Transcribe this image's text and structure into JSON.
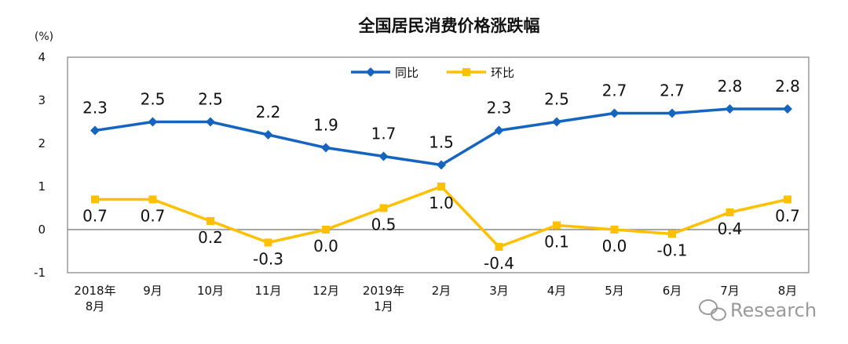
{
  "chart_data": {
    "type": "line",
    "title": "全国居民消费价格涨跌幅",
    "ylabel": "(%)",
    "ylim": [
      -1,
      4
    ],
    "yticks": [
      "4",
      "3",
      "2",
      "1",
      "0",
      "-1"
    ],
    "categories": [
      [
        "2018年",
        "8月"
      ],
      [
        "9月"
      ],
      [
        "10月"
      ],
      [
        "11月"
      ],
      [
        "12月"
      ],
      [
        "2019年",
        "1月"
      ],
      [
        "2月"
      ],
      [
        "3月"
      ],
      [
        "4月"
      ],
      [
        "5月"
      ],
      [
        "6月"
      ],
      [
        "7月"
      ],
      [
        "8月"
      ]
    ],
    "series": [
      {
        "name": "同比",
        "color": "#1565C0",
        "marker": "diamond",
        "values": [
          2.3,
          2.5,
          2.5,
          2.2,
          1.9,
          1.7,
          1.5,
          2.3,
          2.5,
          2.7,
          2.7,
          2.8,
          2.8
        ],
        "labels": [
          "2.3",
          "2.5",
          "2.5",
          "2.2",
          "1.9",
          "1.7",
          "1.5",
          "2.3",
          "2.5",
          "2.7",
          "2.7",
          "2.8",
          "2.8"
        ]
      },
      {
        "name": "环比",
        "color": "#FFC000",
        "marker": "square",
        "values": [
          0.7,
          0.7,
          0.2,
          -0.3,
          0.0,
          0.5,
          1.0,
          -0.4,
          0.1,
          0.0,
          -0.1,
          0.4,
          0.7
        ],
        "labels": [
          "0.7",
          "0.7",
          "0.2",
          "-0.3",
          "0.0",
          "0.5",
          "1.0",
          "-0.4",
          "0.1",
          "0.0",
          "-0.1",
          "0.4",
          "0.7"
        ]
      }
    ],
    "legend_position": "top-center"
  },
  "watermark": {
    "text": "Research"
  }
}
